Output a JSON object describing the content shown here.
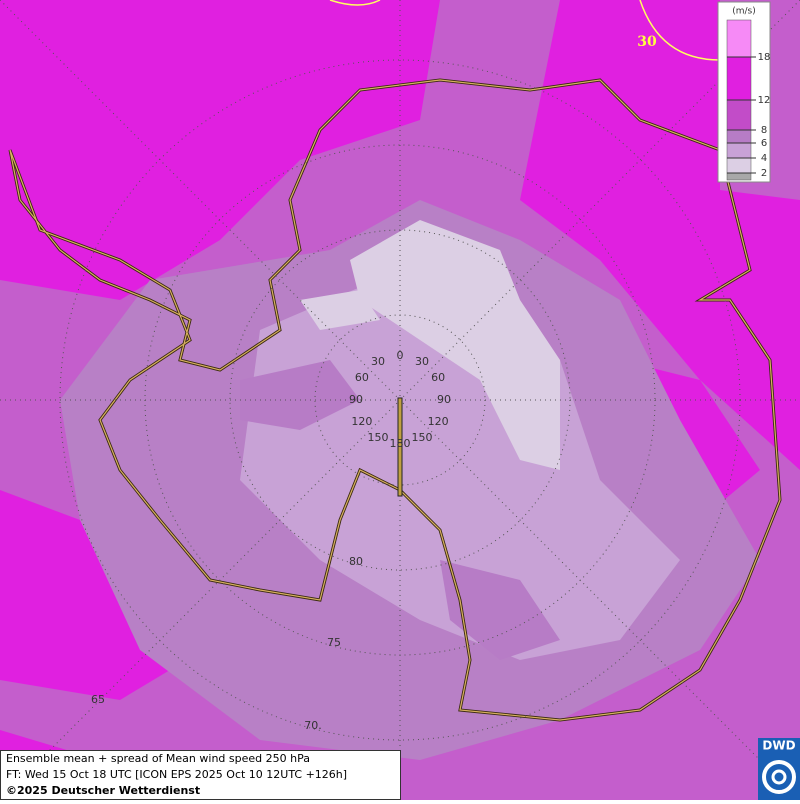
{
  "map": {
    "legend": {
      "unit": "(m/s)",
      "levels": [
        2,
        4,
        6,
        8,
        12,
        18
      ],
      "colors": [
        "#a8a8a8",
        "#dccfe4",
        "#c8a2d6",
        "#b77cc6",
        "#c24cc8",
        "#e020e0",
        "#f68af6"
      ]
    },
    "contour_label": 30,
    "meridian_labels": {
      "north": 0,
      "south": 180,
      "west": [
        30,
        60,
        90,
        120,
        150
      ],
      "east": [
        30,
        60,
        90,
        120,
        150
      ]
    },
    "latitude_labels": [
      80,
      75,
      {
        "value": 70,
        "label": "70."
      },
      65
    ],
    "caption": {
      "line1": "Ensemble mean + spread of Mean wind speed 250 hPa",
      "line2": "FT: Wed 15 Oct 18 UTC [ICON EPS 2025 Oct 10 12UTC +126h]",
      "line3": "©2025 Deutscher Wetterdienst"
    },
    "logo": "DWD"
  }
}
